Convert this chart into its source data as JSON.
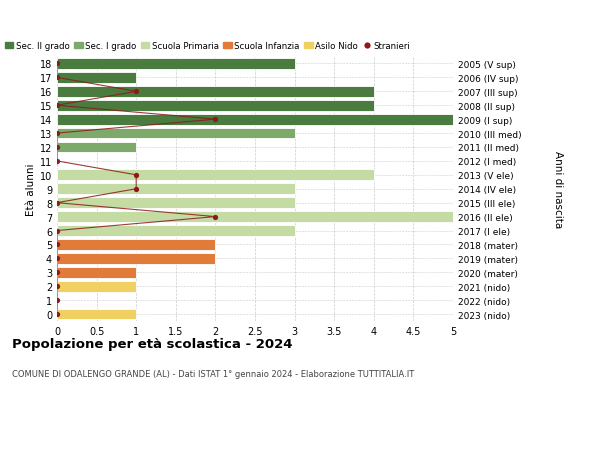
{
  "ages": [
    18,
    17,
    16,
    15,
    14,
    13,
    12,
    11,
    10,
    9,
    8,
    7,
    6,
    5,
    4,
    3,
    2,
    1,
    0
  ],
  "right_labels": [
    "2005 (V sup)",
    "2006 (IV sup)",
    "2007 (III sup)",
    "2008 (II sup)",
    "2009 (I sup)",
    "2010 (III med)",
    "2011 (II med)",
    "2012 (I med)",
    "2013 (V ele)",
    "2014 (IV ele)",
    "2015 (III ele)",
    "2016 (II ele)",
    "2017 (I ele)",
    "2018 (mater)",
    "2019 (mater)",
    "2020 (mater)",
    "2021 (nido)",
    "2022 (nido)",
    "2023 (nido)"
  ],
  "bar_values": [
    3,
    1,
    4,
    4,
    5,
    3,
    1,
    0,
    4,
    3,
    3,
    5,
    3,
    2,
    2,
    1,
    1,
    0,
    1
  ],
  "bar_colors": [
    "#4a7c3f",
    "#4a7c3f",
    "#4a7c3f",
    "#4a7c3f",
    "#4a7c3f",
    "#7daa6b",
    "#7daa6b",
    "#7daa6b",
    "#c5dba4",
    "#c5dba4",
    "#c5dba4",
    "#c5dba4",
    "#c5dba4",
    "#e07b39",
    "#e07b39",
    "#e07b39",
    "#f0d060",
    "#f0d060",
    "#f0d060"
  ],
  "stranieri_values": [
    0,
    0,
    1,
    0,
    2,
    0,
    0,
    0,
    1,
    1,
    0,
    2,
    0,
    0,
    0,
    0,
    0,
    0,
    0
  ],
  "stranieri_color": "#8b1a1a",
  "xlim": [
    0,
    5.0
  ],
  "xticks": [
    0,
    0.5,
    1.0,
    1.5,
    2.0,
    2.5,
    3.0,
    3.5,
    4.0,
    4.5,
    5.0
  ],
  "ylabel_text": "Età alunni",
  "right_ylabel": "Anni di nascita",
  "title": "Popolazione per età scolastica - 2024",
  "subtitle": "COMUNE DI ODALENGO GRANDE (AL) - Dati ISTAT 1° gennaio 2024 - Elaborazione TUTTITALIA.IT",
  "legend_items": [
    {
      "label": "Sec. II grado",
      "color": "#4a7c3f"
    },
    {
      "label": "Sec. I grado",
      "color": "#7daa6b"
    },
    {
      "label": "Scuola Primaria",
      "color": "#c5dba4"
    },
    {
      "label": "Scuola Infanzia",
      "color": "#e07b39"
    },
    {
      "label": "Asilo Nido",
      "color": "#f0d060"
    },
    {
      "label": "Stranieri",
      "color": "#8b1a1a"
    }
  ],
  "bar_height": 0.78,
  "background_color": "#ffffff",
  "grid_color": "#cccccc",
  "fig_width": 6.0,
  "fig_height": 4.6,
  "dpi": 100
}
